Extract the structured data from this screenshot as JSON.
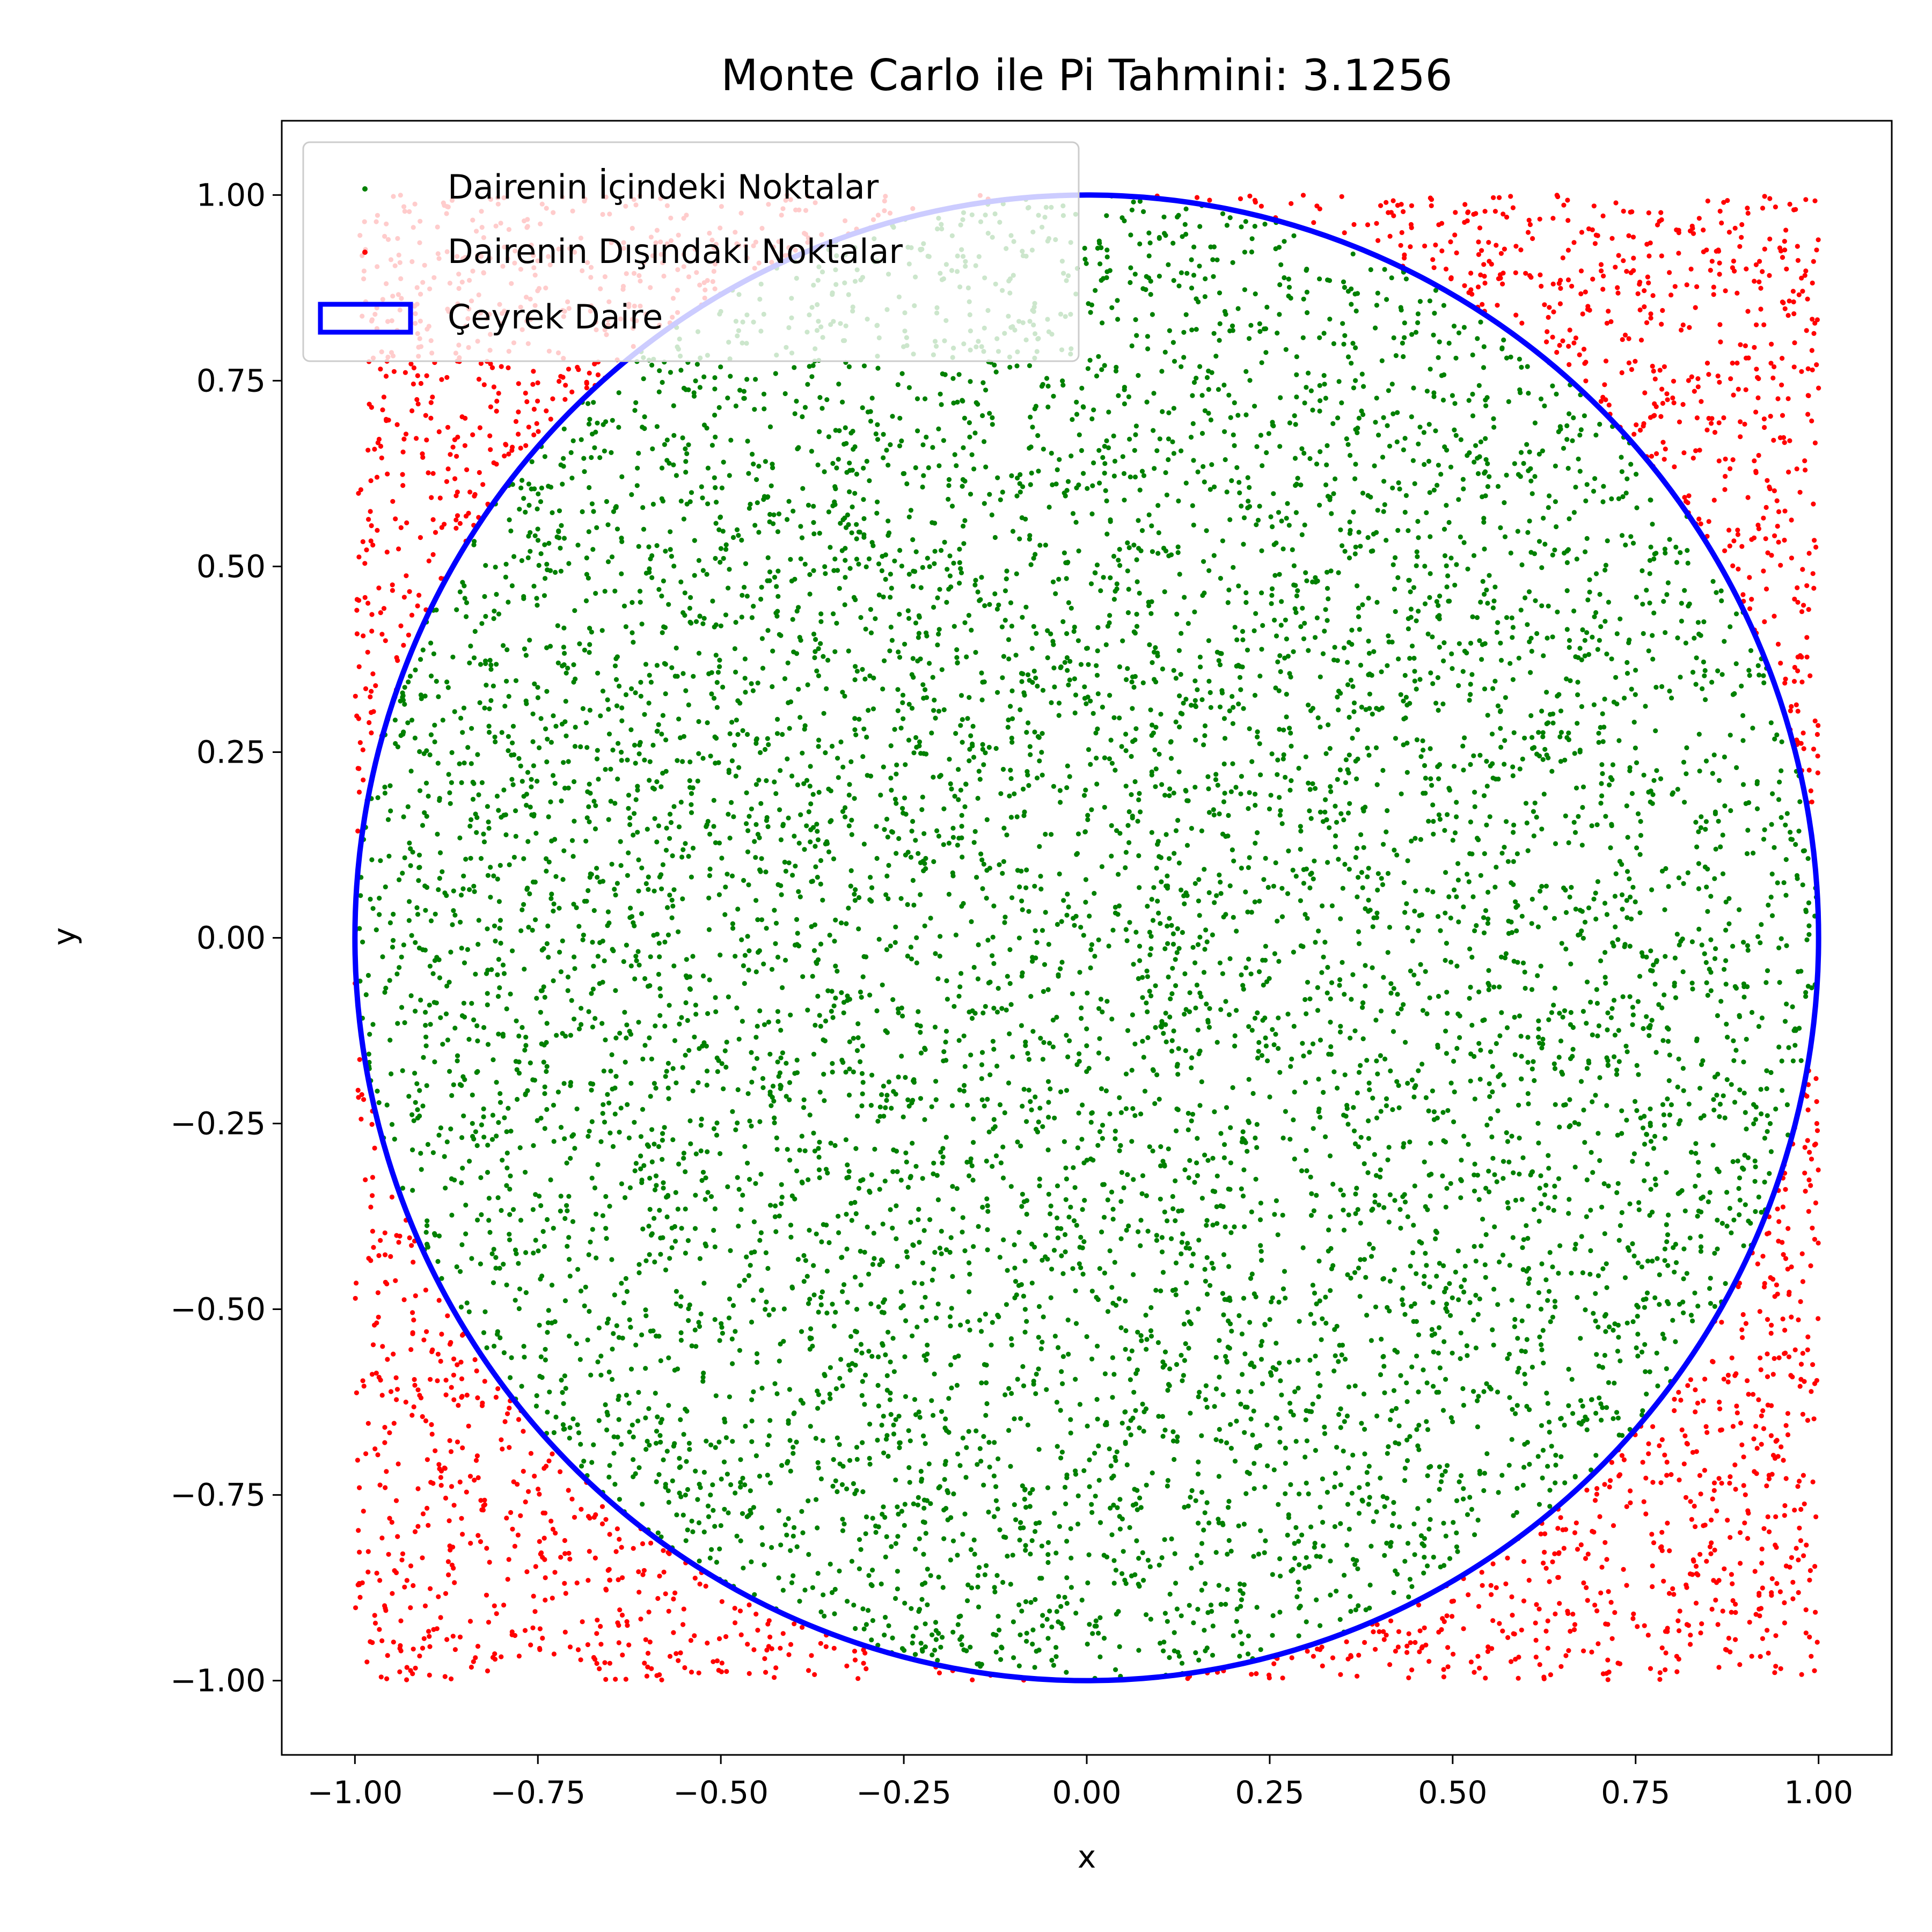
{
  "chart_data": {
    "type": "scatter",
    "title": "Monte Carlo ile Pi Tahmini: 3.1256",
    "xlabel": "x",
    "ylabel": "y",
    "xlim": [
      -1.1,
      1.1
    ],
    "ylim": [
      -1.1,
      1.1
    ],
    "xticks": [
      "−1.00",
      "−0.75",
      "−0.50",
      "−0.25",
      "0.00",
      "0.25",
      "0.50",
      "0.75",
      "1.00"
    ],
    "yticks": [
      "−1.00",
      "−0.75",
      "−0.50",
      "−0.25",
      "0.00",
      "0.25",
      "0.50",
      "0.75",
      "1.00"
    ],
    "grid": false,
    "legend_position": "top-left",
    "series": [
      {
        "name": "Dairenin İçindeki Noktalar",
        "kind": "points",
        "color": "#008000",
        "point_count": 7814,
        "region": "x^2 + y^2 <= 1",
        "x_range": [
          -1.0,
          1.0
        ],
        "y_range": [
          -1.0,
          1.0
        ]
      },
      {
        "name": "Dairenin Dışındaki Noktalar",
        "kind": "points",
        "color": "#ff0000",
        "point_count": 2186,
        "region": "x^2 + y^2 > 1",
        "x_range": [
          -1.0,
          1.0
        ],
        "y_range": [
          -1.0,
          1.0
        ]
      },
      {
        "name": "Çeyrek Daire",
        "kind": "circle",
        "color": "#0000ff",
        "center": [
          0,
          0
        ],
        "radius": 1.0
      }
    ]
  }
}
